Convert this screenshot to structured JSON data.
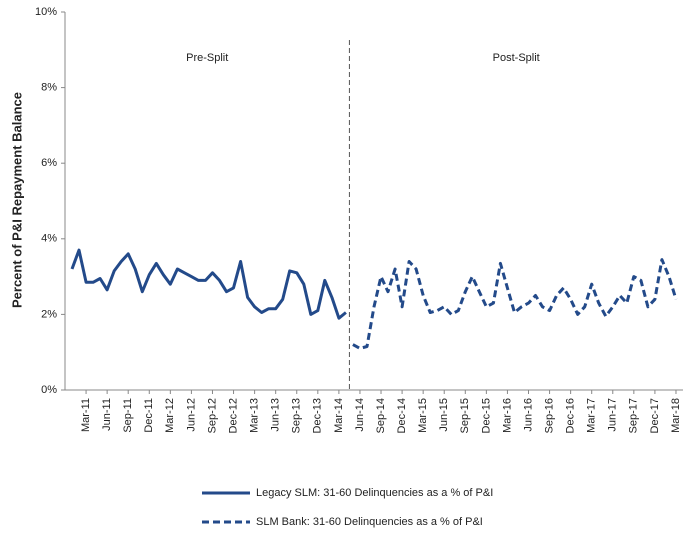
{
  "chart_data": {
    "type": "line",
    "y_label": "Percent of P&I Repayment  Balance",
    "annotations": [
      "Pre-Split",
      "Post-Split"
    ],
    "categories": [
      null,
      null,
      "Mar-11",
      null,
      null,
      "Jun-11",
      null,
      null,
      "Sep-11",
      null,
      null,
      "Dec-11",
      null,
      null,
      "Mar-12",
      null,
      null,
      "Jun-12",
      null,
      null,
      "Sep-12",
      null,
      null,
      "Dec-12",
      null,
      null,
      "Mar-13",
      null,
      null,
      "Jun-13",
      null,
      null,
      "Sep-13",
      null,
      null,
      "Dec-13",
      null,
      null,
      "Mar-14",
      null,
      null,
      "Jun-14",
      null,
      null,
      "Sep-14",
      null,
      null,
      "Dec-14",
      null,
      null,
      "Mar-15",
      null,
      null,
      "Jun-15",
      null,
      null,
      "Sep-15",
      null,
      null,
      "Dec-15",
      null,
      null,
      "Mar-16",
      null,
      null,
      "Jun-16",
      null,
      null,
      "Sep-16",
      null,
      null,
      "Dec-16",
      null,
      null,
      "Mar-17",
      null,
      null,
      "Jun-17",
      null,
      null,
      "Sep-17",
      null,
      null,
      "Dec-17",
      null,
      null,
      "Mar-18"
    ],
    "series": [
      {
        "name": "Legacy SLM: 31-60 Delinquencies as a % of P&I",
        "color": "#234a8a",
        "dashed": false,
        "values": [
          3.2,
          3.7,
          2.85,
          2.85,
          2.95,
          2.65,
          3.15,
          3.4,
          3.6,
          3.2,
          2.6,
          3.05,
          3.35,
          3.05,
          2.8,
          3.2,
          3.1,
          3.0,
          2.9,
          2.9,
          3.1,
          2.9,
          2.6,
          2.7,
          3.4,
          2.45,
          2.2,
          2.05,
          2.15,
          2.15,
          2.4,
          3.15,
          3.1,
          2.8,
          2.0,
          2.1,
          2.9,
          2.45,
          1.9,
          2.05,
          null,
          null,
          null,
          null,
          null,
          null,
          null,
          null,
          null,
          null,
          null,
          null,
          null,
          null,
          null,
          null,
          null,
          null,
          null,
          null,
          null,
          null,
          null,
          null,
          null,
          null,
          null,
          null,
          null,
          null,
          null,
          null,
          null,
          null,
          null,
          null,
          null,
          null,
          null,
          null,
          null,
          null,
          null,
          null,
          null,
          null,
          null
        ]
      },
      {
        "name": "SLM Bank: 31-60 Delinquencies as a % of P&I",
        "color": "#234a8a",
        "dashed": true,
        "values": [
          null,
          null,
          null,
          null,
          null,
          null,
          null,
          null,
          null,
          null,
          null,
          null,
          null,
          null,
          null,
          null,
          null,
          null,
          null,
          null,
          null,
          null,
          null,
          null,
          null,
          null,
          null,
          null,
          null,
          null,
          null,
          null,
          null,
          null,
          null,
          null,
          null,
          null,
          null,
          null,
          1.2,
          1.1,
          1.15,
          2.2,
          3.0,
          2.6,
          3.2,
          2.2,
          3.4,
          3.2,
          2.5,
          2.05,
          2.1,
          2.2,
          2.0,
          2.1,
          2.6,
          3.0,
          2.6,
          2.2,
          2.3,
          3.35,
          2.7,
          2.05,
          2.2,
          2.3,
          2.5,
          2.2,
          2.1,
          2.5,
          2.7,
          2.4,
          2.0,
          2.2,
          2.8,
          2.3,
          1.95,
          2.2,
          2.5,
          2.3,
          3.0,
          2.9,
          2.2,
          2.4,
          3.45,
          3.0,
          2.4
        ]
      }
    ],
    "ylim": [
      0,
      10
    ],
    "yticks": [
      {
        "value": 0,
        "label": "0%"
      },
      {
        "value": 2,
        "label": "2%"
      },
      {
        "value": 4,
        "label": "4%"
      },
      {
        "value": 6,
        "label": "6%"
      },
      {
        "value": 8,
        "label": "8%"
      },
      {
        "value": 10,
        "label": "10%"
      }
    ],
    "grid": false
  }
}
